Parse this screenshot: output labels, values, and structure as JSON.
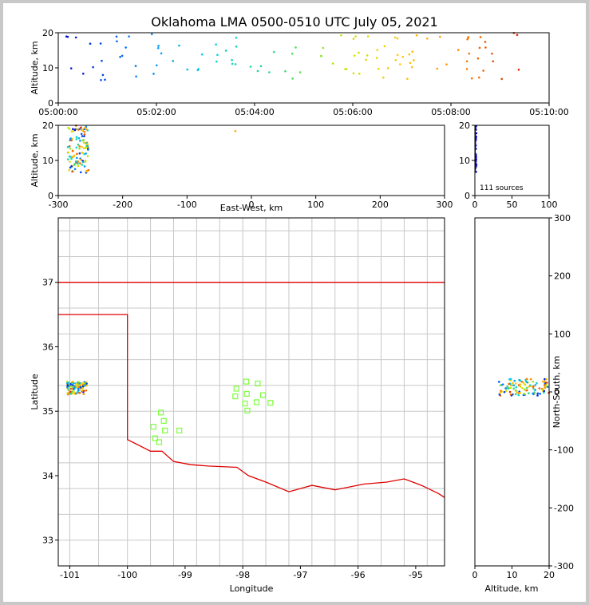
{
  "title": "Oklahoma LMA 0500-0510 UTC July 05, 2021",
  "colors": {
    "map_lines": "#c8c8c8",
    "state_border": "#e00000",
    "station": "#7fff3f"
  },
  "chart_data": [
    {
      "id": "time-altitude",
      "type": "scatter",
      "xlabel": "",
      "ylabel": "Altitude, km",
      "x_ticks": [
        "05:00:00",
        "05:02:00",
        "05:04:00",
        "05:06:00",
        "05:08:00",
        "05:10:00"
      ],
      "xlim_seconds": [
        0,
        600
      ],
      "ylim": [
        0,
        20
      ],
      "y_ticks": [
        0,
        10,
        20
      ],
      "color_scale": "time (blue → green → yellow → red)"
    },
    {
      "id": "ew-altitude",
      "type": "scatter",
      "xlabel": "East-West, km",
      "ylabel": "Altitude, km",
      "xlim": [
        -300,
        300
      ],
      "x_ticks": [
        -300,
        -200,
        -100,
        0,
        100,
        200,
        300
      ],
      "ylim": [
        0,
        20
      ],
      "y_ticks": [
        0,
        10,
        20
      ]
    },
    {
      "id": "altitude-histogram",
      "type": "bar",
      "xlim": [
        0,
        100
      ],
      "x_ticks": [
        0,
        50,
        100
      ],
      "ylim": [
        0,
        20
      ],
      "y_ticks": [
        0,
        10,
        20
      ],
      "annotation": "111 sources"
    },
    {
      "id": "plan-view",
      "type": "scatter",
      "xlabel": "Longitude",
      "ylabel": "Latitude",
      "xlim": [
        -101.2,
        -94.5
      ],
      "ylim": [
        32.6,
        38.0
      ],
      "x_ticks": [
        -101,
        -100,
        -99,
        -98,
        -97,
        -96,
        -95
      ],
      "y_ticks": [
        33,
        34,
        35,
        36,
        37
      ],
      "stations": [
        [
          -97.94,
          35.46
        ],
        [
          -97.74,
          35.43
        ],
        [
          -98.11,
          35.35
        ],
        [
          -97.93,
          35.27
        ],
        [
          -97.65,
          35.25
        ],
        [
          -98.13,
          35.23
        ],
        [
          -97.96,
          35.12
        ],
        [
          -97.76,
          35.14
        ],
        [
          -97.52,
          35.13
        ],
        [
          -97.92,
          35.01
        ],
        [
          -99.42,
          34.98
        ],
        [
          -99.37,
          34.85
        ],
        [
          -99.55,
          34.76
        ],
        [
          -99.35,
          34.7
        ],
        [
          -99.1,
          34.7
        ],
        [
          -99.52,
          34.58
        ],
        [
          -99.45,
          34.52
        ]
      ]
    },
    {
      "id": "altitude-ns",
      "type": "scatter",
      "xlabel": "Altitude, km",
      "ylabel": "North-South, km",
      "xlim": [
        0,
        20
      ],
      "x_ticks": [
        0,
        10,
        20
      ],
      "ylim": [
        -300,
        300
      ],
      "y_ticks": [
        -300,
        -200,
        -100,
        0,
        100,
        200,
        300
      ]
    }
  ]
}
